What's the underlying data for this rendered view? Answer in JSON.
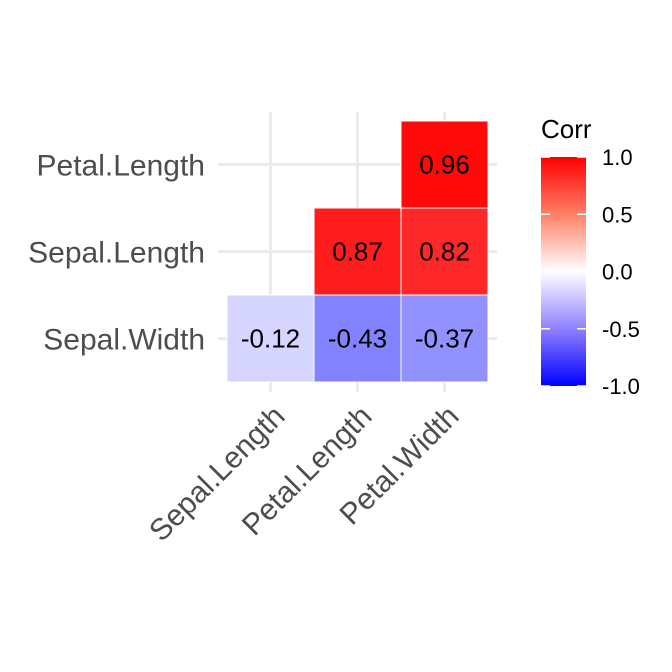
{
  "chart_data": {
    "type": "heatmap",
    "x_categories": [
      "Sepal.Length",
      "Petal.Length",
      "Petal.Width"
    ],
    "y_categories": [
      "Petal.Length",
      "Sepal.Length",
      "Sepal.Width"
    ],
    "cells": [
      {
        "x": "Petal.Width",
        "y": "Petal.Length",
        "value": 0.96,
        "label": "0.96"
      },
      {
        "x": "Petal.Length",
        "y": "Sepal.Length",
        "value": 0.87,
        "label": "0.87"
      },
      {
        "x": "Petal.Width",
        "y": "Sepal.Length",
        "value": 0.82,
        "label": "0.82"
      },
      {
        "x": "Sepal.Length",
        "y": "Sepal.Width",
        "value": -0.12,
        "label": "-0.12"
      },
      {
        "x": "Petal.Length",
        "y": "Sepal.Width",
        "value": -0.43,
        "label": "-0.43"
      },
      {
        "x": "Petal.Width",
        "y": "Sepal.Width",
        "value": -0.37,
        "label": "-0.37"
      }
    ],
    "legend": {
      "title": "Corr",
      "range": [
        -1.0,
        1.0
      ],
      "ticks": [
        1.0,
        0.5,
        0.0,
        -0.5,
        -1.0
      ],
      "tick_labels": [
        "1.0",
        "0.5",
        "0.0",
        "-0.5",
        "-1.0"
      ],
      "placement": "right"
    },
    "colors": {
      "low": "#0000ff",
      "mid": "#ffffff",
      "high": "#ff0000",
      "grid": "#ebebeb"
    },
    "grid": true
  }
}
